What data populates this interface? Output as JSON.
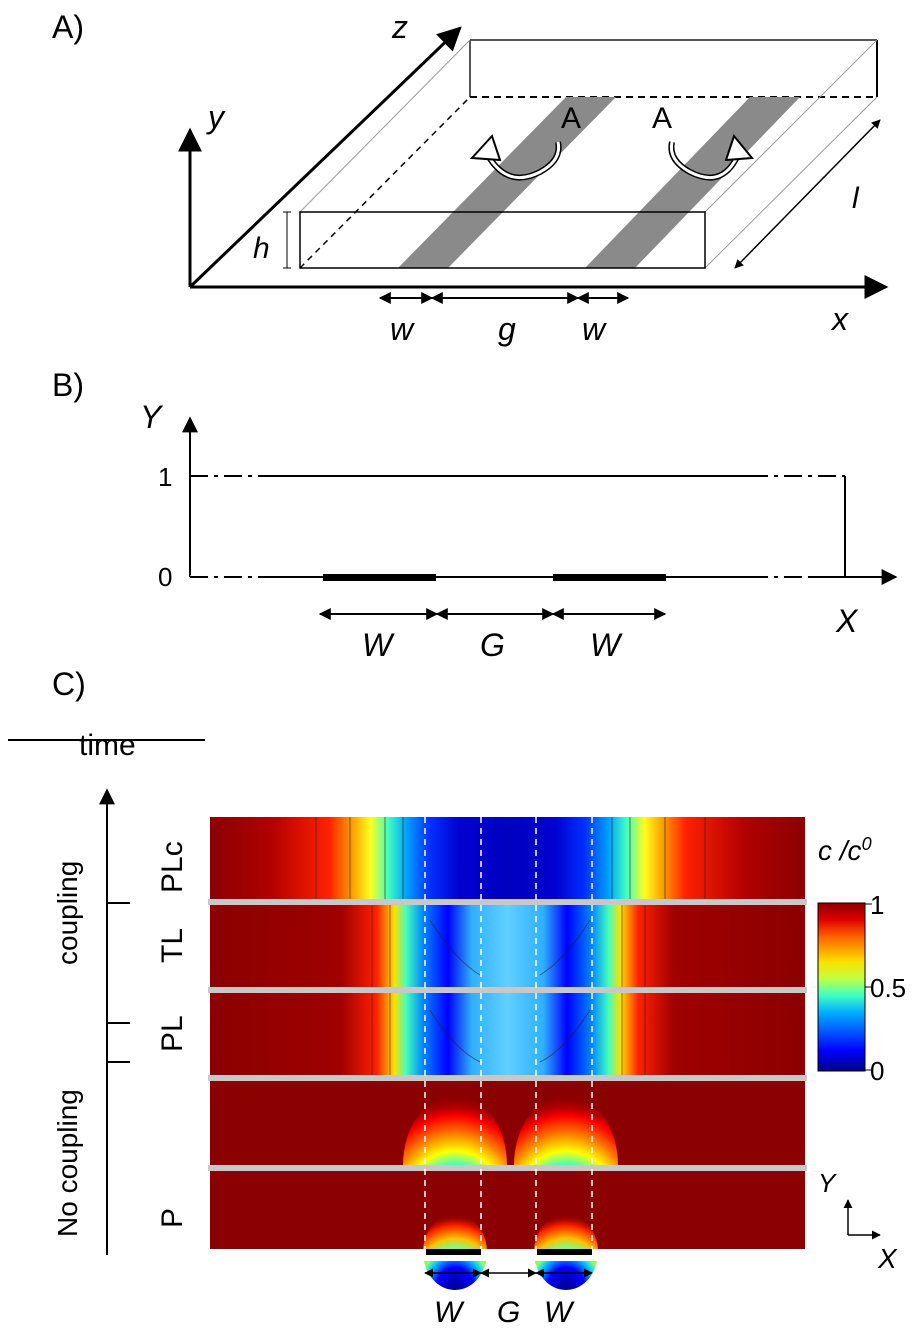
{
  "panel_a": {
    "label": "A)",
    "axis_x": "x",
    "axis_y": "y",
    "axis_z": "z",
    "height_label": "h",
    "length_label": "l",
    "width_label_left": "w",
    "gap_label": "g",
    "width_label_right": "w",
    "electrode_left_label": "A",
    "electrode_right_label": "A"
  },
  "panel_b": {
    "label": "B)",
    "axis_x": "X",
    "axis_y": "Y",
    "tick_1": "1",
    "tick_0": "0",
    "width_label_left": "W",
    "gap_label": "G",
    "width_label_right": "W"
  },
  "panel_c": {
    "label": "C)",
    "time_label": "time",
    "coupling_label": "coupling",
    "no_coupling_label": "No coupling",
    "row_labels": [
      "PLc",
      "TL",
      "PL",
      "",
      "P"
    ],
    "colorbar_title_c": "c",
    "colorbar_title_sep": " /c",
    "colorbar_title_sup": "0",
    "colorbar_ticks": [
      "1",
      "0.5",
      "0"
    ],
    "axis_y": "Y",
    "axis_x": "X",
    "width_label_left": "W",
    "gap_label": "G",
    "width_label_right": "W",
    "colormap": [
      "#00008b",
      "#0000ff",
      "#00a0ff",
      "#00ffff",
      "#80ff80",
      "#ffff00",
      "#ff8000",
      "#ff0000",
      "#8b0000"
    ]
  }
}
